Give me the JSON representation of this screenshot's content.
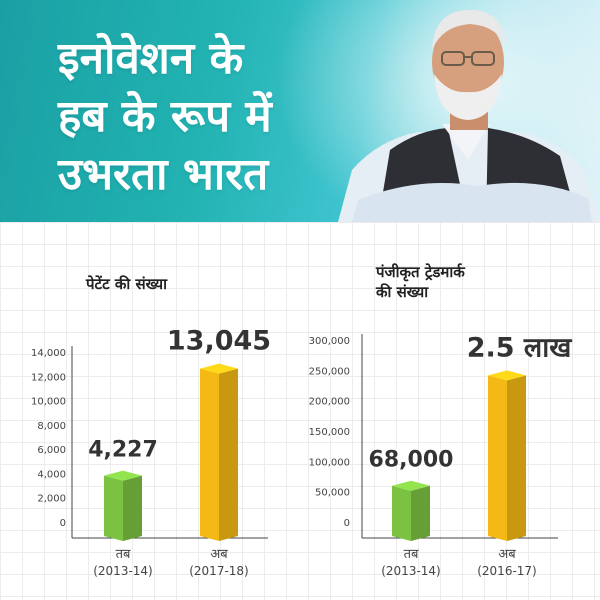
{
  "header": {
    "headline_lines": [
      "इनोवेशन के",
      "हब के रूप में",
      "उभरता भारत"
    ],
    "text_color": "#ffffff",
    "banner_color": "#22b3b2"
  },
  "chart_data": [
    {
      "type": "bar",
      "title": "पेटेंट की संख्या",
      "categories": [
        "तब",
        "अब"
      ],
      "category_sub": [
        "(2013-14)",
        "(2017-18)"
      ],
      "values": [
        4227,
        13045
      ],
      "value_labels": [
        "4,227",
        "13,045"
      ],
      "yticks": [
        0,
        2000,
        4000,
        6000,
        8000,
        10000,
        12000,
        14000
      ],
      "ytick_labels": [
        "0",
        "2,000",
        "4,000",
        "6,000",
        "8,000",
        "10,000",
        "12,000",
        "14,000"
      ],
      "ylim": [
        0,
        14000
      ],
      "bar_colors": [
        "#7cc242",
        "#f5b915"
      ],
      "grid": true
    },
    {
      "type": "bar",
      "title_lines": [
        "पंजीकृत ट्रेडमार्क",
        "की संख्या"
      ],
      "categories": [
        "तब",
        "अब"
      ],
      "category_sub": [
        "(2013-14)",
        "(2016-17)"
      ],
      "values": [
        68000,
        250000
      ],
      "value_labels": [
        "68,000",
        "2.5 लाख"
      ],
      "yticks": [
        0,
        50000,
        100000,
        150000,
        200000,
        250000,
        300000
      ],
      "ytick_labels": [
        "0",
        "50,000",
        "100,000",
        "150,000",
        "200,000",
        "250,000",
        "300,000"
      ],
      "ylim": [
        0,
        300000
      ],
      "bar_colors": [
        "#7cc242",
        "#f5b915"
      ],
      "grid": true
    }
  ]
}
